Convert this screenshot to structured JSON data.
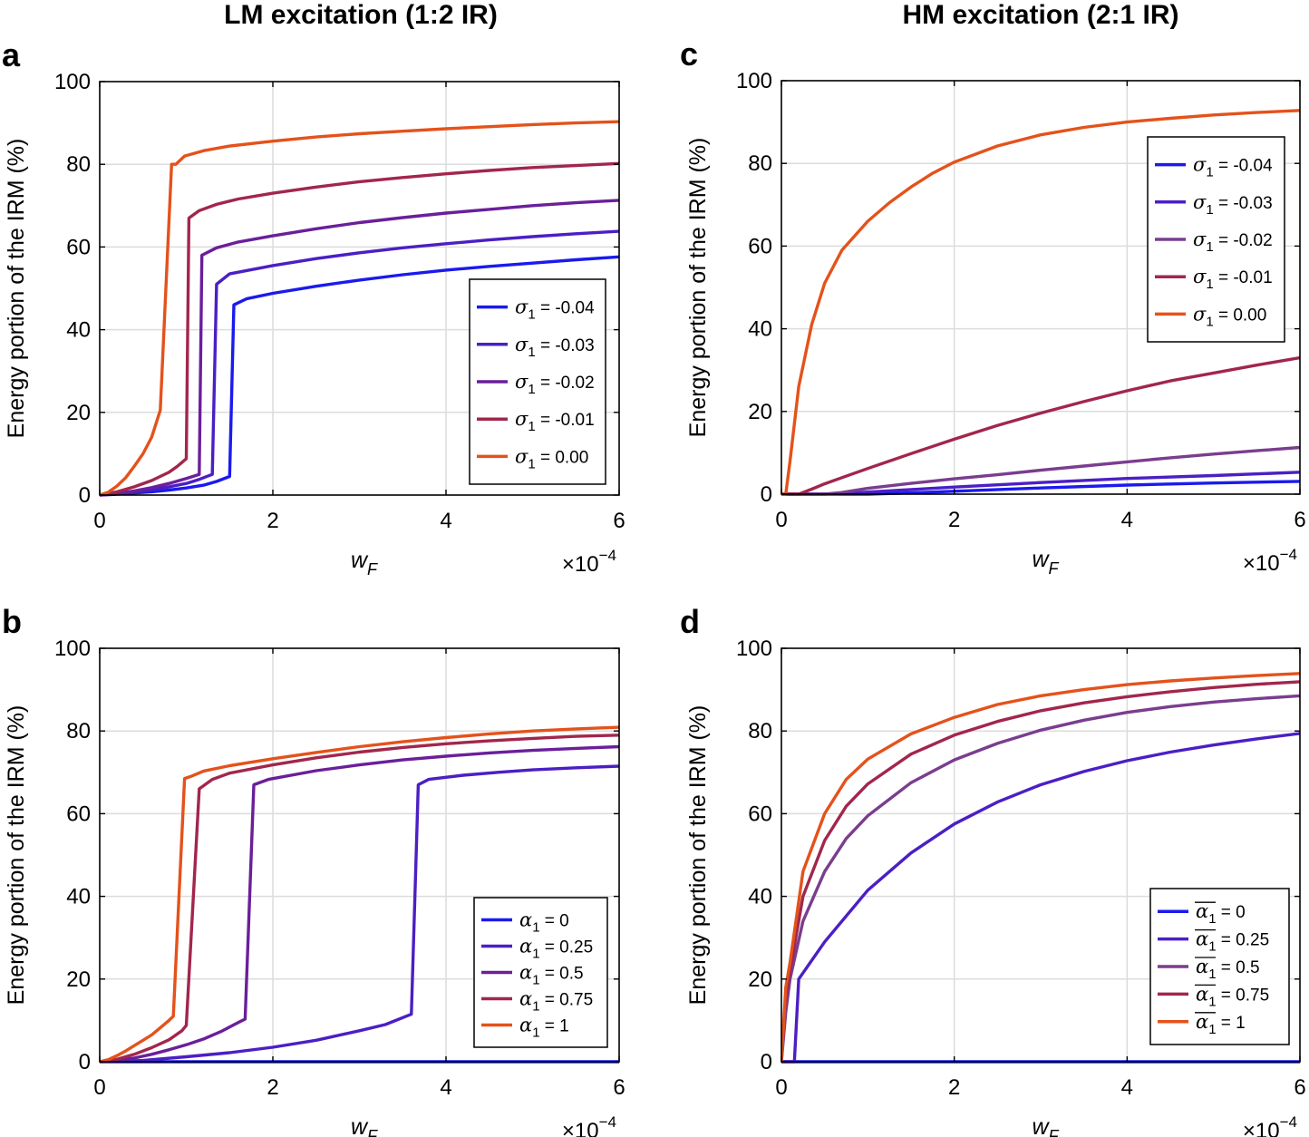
{
  "column_titles": [
    "LM excitation (1:2 IR)",
    "HM excitation (2:1 IR)"
  ],
  "chart_data": [
    {
      "id": "a",
      "panel_label": "a",
      "type": "line",
      "ylabel": "Energy portion of the IRM (%)",
      "xlabel_main": "w",
      "xlabel_sub": "F",
      "x_scale_label": "×10",
      "x_scale_exp": "−4",
      "xlim": [
        0,
        6
      ],
      "ylim": [
        0,
        100
      ],
      "xticks": [
        0,
        2,
        4,
        6
      ],
      "yticks": [
        0,
        20,
        40,
        60,
        80,
        100
      ],
      "grid": true,
      "legend_position": "middle-right",
      "legend_symbol": "σ",
      "legend_subscript": "1",
      "legend_overline": false,
      "series": [
        {
          "name": "σ1 = -0.04",
          "legend_value": " = -0.04",
          "color": "#1a1aee",
          "x": [
            0,
            0.2,
            0.4,
            0.6,
            0.8,
            1.0,
            1.2,
            1.35,
            1.5,
            1.55,
            1.7,
            2,
            2.5,
            3,
            3.5,
            4,
            4.5,
            5,
            5.5,
            6
          ],
          "y": [
            0,
            0.2,
            0.5,
            0.8,
            1.2,
            1.7,
            2.4,
            3.3,
            4.5,
            46,
            47.5,
            48.8,
            50.5,
            52,
            53.3,
            54.4,
            55.3,
            56.1,
            56.9,
            57.6
          ]
        },
        {
          "name": "σ1 = -0.03",
          "legend_value": " = -0.03",
          "color": "#4b1fc4",
          "x": [
            0,
            0.2,
            0.4,
            0.6,
            0.8,
            1.0,
            1.15,
            1.3,
            1.35,
            1.5,
            2,
            2.5,
            3,
            3.5,
            4,
            4.5,
            5,
            5.5,
            6
          ],
          "y": [
            0,
            0.3,
            0.8,
            1.3,
            2,
            2.8,
            3.8,
            5,
            51,
            53.5,
            55.5,
            57.2,
            58.6,
            59.8,
            60.8,
            61.7,
            62.5,
            63.2,
            63.8
          ]
        },
        {
          "name": "σ1 = -0.02",
          "legend_value": " = -0.02",
          "color": "#6a1f9a",
          "x": [
            0,
            0.2,
            0.4,
            0.6,
            0.8,
            1.0,
            1.15,
            1.18,
            1.35,
            1.6,
            2,
            2.5,
            3,
            3.5,
            4,
            4.5,
            5,
            5.5,
            6
          ],
          "y": [
            0,
            0.4,
            1,
            1.8,
            2.8,
            4,
            5,
            58,
            59.8,
            61.2,
            62.7,
            64.4,
            65.9,
            67.1,
            68.2,
            69.1,
            70,
            70.7,
            71.3
          ]
        },
        {
          "name": "σ1 = -0.01",
          "legend_value": " = -0.01",
          "color": "#a2264c",
          "x": [
            0,
            0.2,
            0.4,
            0.6,
            0.8,
            0.9,
            1.0,
            1.03,
            1.15,
            1.35,
            1.6,
            2,
            2.5,
            3,
            3.5,
            4,
            4.5,
            5,
            5.5,
            6
          ],
          "y": [
            0,
            0.8,
            2,
            3.5,
            5.5,
            7,
            8.8,
            67,
            68.8,
            70.3,
            71.6,
            73,
            74.5,
            75.8,
            76.8,
            77.7,
            78.5,
            79.2,
            79.7,
            80.2
          ]
        },
        {
          "name": "σ1 = 0.00",
          "legend_value": " = 0.00",
          "color": "#e4521b",
          "x": [
            0,
            0.1,
            0.2,
            0.3,
            0.4,
            0.5,
            0.6,
            0.7,
            0.83,
            0.88,
            0.98,
            1.2,
            1.5,
            2,
            2.5,
            3,
            3.5,
            4,
            4.5,
            5,
            5.5,
            6
          ],
          "y": [
            0,
            0.7,
            2.2,
            4.2,
            7,
            10,
            14,
            20.5,
            80,
            80,
            82,
            83.3,
            84.4,
            85.6,
            86.6,
            87.4,
            88,
            88.6,
            89.1,
            89.6,
            90,
            90.3
          ]
        }
      ]
    },
    {
      "id": "b",
      "panel_label": "b",
      "type": "line",
      "ylabel": "Energy portion of the IRM (%)",
      "xlabel_main": "w",
      "xlabel_sub": "F",
      "x_scale_label": "×10",
      "x_scale_exp": "−4",
      "xlim": [
        0,
        6
      ],
      "ylim": [
        0,
        100
      ],
      "xticks": [
        0,
        2,
        4,
        6
      ],
      "yticks": [
        0,
        20,
        40,
        60,
        80,
        100
      ],
      "grid": true,
      "legend_position": "bottom-right",
      "legend_symbol": "α",
      "legend_subscript": "1",
      "legend_overline": false,
      "series": [
        {
          "name": "α1 = 0",
          "legend_value": " = 0",
          "color": "#1a1aee",
          "x": [
            0,
            6
          ],
          "y": [
            0,
            0
          ]
        },
        {
          "name": "α1 = 0.25",
          "legend_value": " = 0.25",
          "color": "#4b1fc4",
          "x": [
            0,
            0.5,
            1.0,
            1.5,
            2.0,
            2.5,
            3.0,
            3.3,
            3.6,
            3.68,
            3.8,
            4.2,
            4.6,
            5,
            5.5,
            6
          ],
          "y": [
            0,
            0.3,
            1.2,
            2.2,
            3.5,
            5.2,
            7.5,
            9,
            11.5,
            67,
            68.3,
            69.3,
            70,
            70.6,
            71.1,
            71.5
          ]
        },
        {
          "name": "α1 = 0.5",
          "legend_value": " = 0.5",
          "color": "#6a1f9a",
          "x": [
            0,
            0.2,
            0.4,
            0.6,
            0.8,
            1.0,
            1.2,
            1.4,
            1.6,
            1.68,
            1.78,
            1.95,
            2.5,
            3,
            3.5,
            4,
            4.5,
            5,
            5.5,
            6
          ],
          "y": [
            0,
            0.3,
            0.9,
            1.8,
            2.9,
            4.1,
            5.5,
            7.3,
            9.5,
            10.3,
            67,
            68.3,
            70.4,
            71.8,
            73,
            73.9,
            74.7,
            75.3,
            75.8,
            76.2
          ]
        },
        {
          "name": "α1 = 0.75",
          "legend_value": " = 0.75",
          "color": "#a2264c",
          "x": [
            0,
            0.2,
            0.4,
            0.6,
            0.8,
            0.95,
            1.0,
            1.15,
            1.3,
            1.5,
            2,
            2.5,
            3,
            3.5,
            4,
            4.5,
            5,
            5.5,
            6
          ],
          "y": [
            0,
            0.6,
            1.8,
            3.4,
            5.3,
            7.5,
            8.8,
            66,
            68.3,
            69.8,
            71.8,
            73.5,
            74.9,
            76,
            76.9,
            77.6,
            78.2,
            78.7,
            79
          ]
        },
        {
          "name": "α1 = 1",
          "legend_value": " = 1",
          "color": "#e4521b",
          "x": [
            0,
            0.1,
            0.2,
            0.3,
            0.4,
            0.5,
            0.6,
            0.7,
            0.8,
            0.85,
            0.98,
            1.05,
            1.2,
            1.5,
            2,
            2.5,
            3,
            3.5,
            4,
            4.5,
            5,
            5.5,
            6
          ],
          "y": [
            0,
            0.5,
            1.5,
            2.6,
            3.9,
            5.2,
            6.5,
            8.2,
            10,
            11,
            68.5,
            69,
            70.3,
            71.6,
            73.3,
            74.8,
            76.2,
            77.4,
            78.4,
            79.3,
            80,
            80.5,
            80.9
          ]
        }
      ]
    },
    {
      "id": "c",
      "panel_label": "c",
      "type": "line",
      "ylabel": "Energy portion of the IRM (%)",
      "xlabel_main": "w",
      "xlabel_sub": "F",
      "x_scale_label": "×10",
      "x_scale_exp": "−4",
      "xlim": [
        0,
        6
      ],
      "ylim": [
        0,
        100
      ],
      "xticks": [
        0,
        2,
        4,
        6
      ],
      "yticks": [
        0,
        20,
        40,
        60,
        80,
        100
      ],
      "grid": true,
      "legend_position": "top-right",
      "legend_symbol": "σ",
      "legend_subscript": "1",
      "legend_overline": false,
      "series": [
        {
          "name": "σ1 = -0.04",
          "legend_value": " = -0.04",
          "color": "#1a1aee",
          "x": [
            0,
            1.0,
            1.5,
            2,
            3,
            4,
            5,
            6
          ],
          "y": [
            0,
            0,
            0.3,
            0.7,
            1.5,
            2.2,
            2.7,
            3.1
          ]
        },
        {
          "name": "σ1 = -0.03",
          "legend_value": " = -0.03",
          "color": "#4b1fc4",
          "x": [
            0,
            0.5,
            0.8,
            1,
            1.5,
            2,
            3,
            4,
            5,
            6
          ],
          "y": [
            0,
            0,
            0.2,
            0.5,
            1.1,
            1.7,
            2.8,
            3.8,
            4.5,
            5.3
          ]
        },
        {
          "name": "σ1 = -0.02",
          "legend_value": " = -0.02",
          "color": "#7a3d8f",
          "x": [
            0,
            0.3,
            0.5,
            0.7,
            1,
            1.5,
            2,
            2.5,
            3,
            3.5,
            4,
            4.5,
            5,
            5.5,
            6
          ],
          "y": [
            0,
            0,
            0,
            0.4,
            1.4,
            2.6,
            3.7,
            4.7,
            5.8,
            6.8,
            7.8,
            8.8,
            9.7,
            10.5,
            11.3
          ]
        },
        {
          "name": "σ1 = -0.01",
          "legend_value": " = -0.01",
          "color": "#a2264c",
          "x": [
            0,
            0.2,
            0.35,
            0.5,
            0.7,
            1,
            1.5,
            2,
            2.5,
            3,
            3.5,
            4,
            4.5,
            5,
            5.5,
            6
          ],
          "y": [
            0,
            0,
            1.2,
            2.5,
            4,
            6.2,
            9.8,
            13.3,
            16.6,
            19.6,
            22.4,
            25,
            27.4,
            29.3,
            31.2,
            33
          ]
        },
        {
          "name": "σ1 = 0.00",
          "legend_value": " = 0.00",
          "color": "#e4521b",
          "x": [
            0,
            0.05,
            0.1,
            0.2,
            0.35,
            0.5,
            0.7,
            1,
            1.25,
            1.5,
            1.75,
            2,
            2.5,
            3,
            3.5,
            4,
            4.5,
            5,
            5.5,
            6
          ],
          "y": [
            0,
            0,
            8,
            26,
            41,
            51,
            59,
            66,
            70.5,
            74.3,
            77.6,
            80.3,
            84.2,
            86.9,
            88.7,
            90,
            90.9,
            91.7,
            92.3,
            92.8
          ]
        }
      ]
    },
    {
      "id": "d",
      "panel_label": "d",
      "type": "line",
      "ylabel": "Energy portion of the IRM (%)",
      "xlabel_main": "w",
      "xlabel_sub": "F",
      "x_scale_label": "×10",
      "x_scale_exp": "−4",
      "xlim": [
        0,
        6
      ],
      "ylim": [
        0,
        100
      ],
      "xticks": [
        0,
        2,
        4,
        6
      ],
      "yticks": [
        0,
        20,
        40,
        60,
        80,
        100
      ],
      "grid": true,
      "legend_position": "bottom-right",
      "legend_symbol": "α",
      "legend_subscript": "1",
      "legend_overline": true,
      "series": [
        {
          "name": "ᾱ1 = 0",
          "legend_value": " = 0",
          "color": "#1a1aee",
          "x": [
            0,
            6
          ],
          "y": [
            0,
            0
          ]
        },
        {
          "name": "ᾱ1 = 0.25",
          "legend_value": " = 0.25",
          "color": "#4b1fc4",
          "x": [
            0,
            0.15,
            0.2,
            0.5,
            1,
            1.5,
            2,
            2.5,
            3,
            3.5,
            4,
            4.5,
            5,
            5.5,
            6
          ],
          "y": [
            0,
            0,
            20,
            29,
            41.5,
            50.5,
            57.5,
            62.8,
            67,
            70.2,
            72.8,
            74.9,
            76.6,
            78.1,
            79.4
          ]
        },
        {
          "name": "ᾱ1 = 0.5",
          "legend_value": " = 0.5",
          "color": "#7a3d8f",
          "x": [
            0,
            0.05,
            0.1,
            0.25,
            0.5,
            0.75,
            1,
            1.5,
            2,
            2.5,
            3,
            3.5,
            4,
            4.5,
            5,
            5.5,
            6
          ],
          "y": [
            0,
            12,
            20,
            34,
            46,
            54,
            59.5,
            67.5,
            73,
            77,
            80.2,
            82.6,
            84.5,
            85.9,
            87,
            87.8,
            88.5
          ]
        },
        {
          "name": "ᾱ1 = 0.75",
          "legend_value": " = 0.75",
          "color": "#a2264c",
          "x": [
            0,
            0.05,
            0.1,
            0.25,
            0.5,
            0.75,
            1,
            1.5,
            2,
            2.5,
            3,
            3.5,
            4,
            4.5,
            5,
            5.5,
            6
          ],
          "y": [
            0,
            16,
            22,
            40,
            53.5,
            61.8,
            67.2,
            74.4,
            79,
            82.3,
            84.9,
            86.8,
            88.3,
            89.5,
            90.5,
            91.3,
            91.9
          ]
        },
        {
          "name": "ᾱ1 = 1",
          "legend_value": " = 1",
          "color": "#e4521b",
          "x": [
            0,
            0.05,
            0.1,
            0.25,
            0.5,
            0.75,
            1,
            1.5,
            2,
            2.5,
            3,
            3.5,
            4,
            4.5,
            5,
            5.5,
            6
          ],
          "y": [
            0,
            18,
            24,
            46,
            60,
            68.3,
            73.2,
            79.3,
            83.3,
            86.4,
            88.5,
            90,
            91.2,
            92.1,
            92.8,
            93.4,
            93.9
          ]
        }
      ]
    }
  ]
}
